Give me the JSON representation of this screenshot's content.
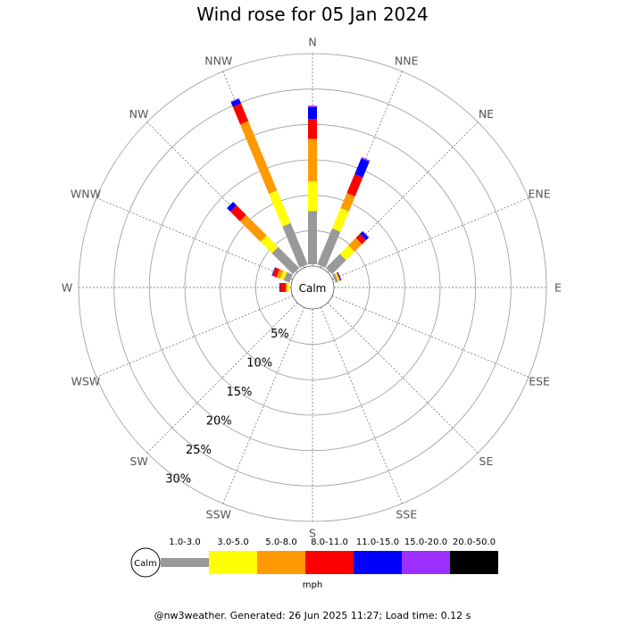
{
  "title": "Wind rose for 05 Jan 2024",
  "footer": "@nw3weather. Generated: 26 Jun 2025 11:27; Load time: 0.12 s",
  "calm_label": "Calm",
  "units_label": "mph",
  "chart_data": {
    "type": "wind-rose",
    "title": "Wind rose for 05 Jan 2024",
    "directions": [
      "N",
      "NNE",
      "NE",
      "ENE",
      "E",
      "ESE",
      "SE",
      "SSE",
      "S",
      "SSW",
      "SW",
      "WSW",
      "W",
      "WNW",
      "NW",
      "NNW"
    ],
    "ring_labels": [
      "5%",
      "10%",
      "15%",
      "20%",
      "25%",
      "30%"
    ],
    "rmax_percent": 30,
    "speed_bins": [
      {
        "label": "1.0-3.0",
        "color": "#999999"
      },
      {
        "label": "3.0-5.0",
        "color": "#ffff00"
      },
      {
        "label": "5.0-8.0",
        "color": "#ff9900"
      },
      {
        "label": "8.0-11.0",
        "color": "#ff0000"
      },
      {
        "label": "11.0-15.0",
        "color": "#0000ff"
      },
      {
        "label": "15.0-20.0",
        "color": "#9b30ff"
      },
      {
        "label": "20.0-50.0",
        "color": "#000000"
      }
    ],
    "cumulative_percent": {
      "N": [
        7.5,
        11.7,
        17.7,
        20.5,
        22.2,
        22.4,
        22.4
      ],
      "NNE": [
        5.5,
        8.6,
        10.9,
        13.8,
        16.2,
        16.4,
        16.4
      ],
      "NE": [
        2.8,
        4.5,
        6.0,
        6.8,
        7.3,
        7.4,
        7.4
      ],
      "ENE": [
        0.4,
        0.6,
        0.7,
        0.8,
        0.9,
        0.9,
        0.9
      ],
      "E": [
        0,
        0,
        0,
        0,
        0,
        0,
        0
      ],
      "ESE": [
        0,
        0,
        0,
        0,
        0,
        0,
        0
      ],
      "SE": [
        0,
        0,
        0,
        0,
        0,
        0,
        0
      ],
      "SSE": [
        0,
        0,
        0,
        0,
        0,
        0,
        0
      ],
      "S": [
        0,
        0,
        0,
        0,
        0,
        0,
        0
      ],
      "SSW": [
        0,
        0,
        0,
        0,
        0,
        0,
        0
      ],
      "SW": [
        0,
        0,
        0,
        0,
        0,
        0,
        0
      ],
      "WSW": [
        0,
        0,
        0,
        0,
        0,
        0,
        0
      ],
      "W": [
        0,
        0.3,
        0.5,
        1.3,
        1.4,
        1.4,
        1.4
      ],
      "WNW": [
        0.9,
        1.4,
        2.0,
        2.6,
        2.7,
        2.7,
        2.7
      ],
      "NW": [
        4.2,
        6.5,
        10.6,
        12.5,
        13.2,
        13.2,
        13.2
      ],
      "NNW": [
        6.3,
        11.3,
        21.9,
        24.6,
        25.3,
        25.4,
        25.4
      ]
    },
    "grid": true,
    "legend_position": "bottom"
  }
}
